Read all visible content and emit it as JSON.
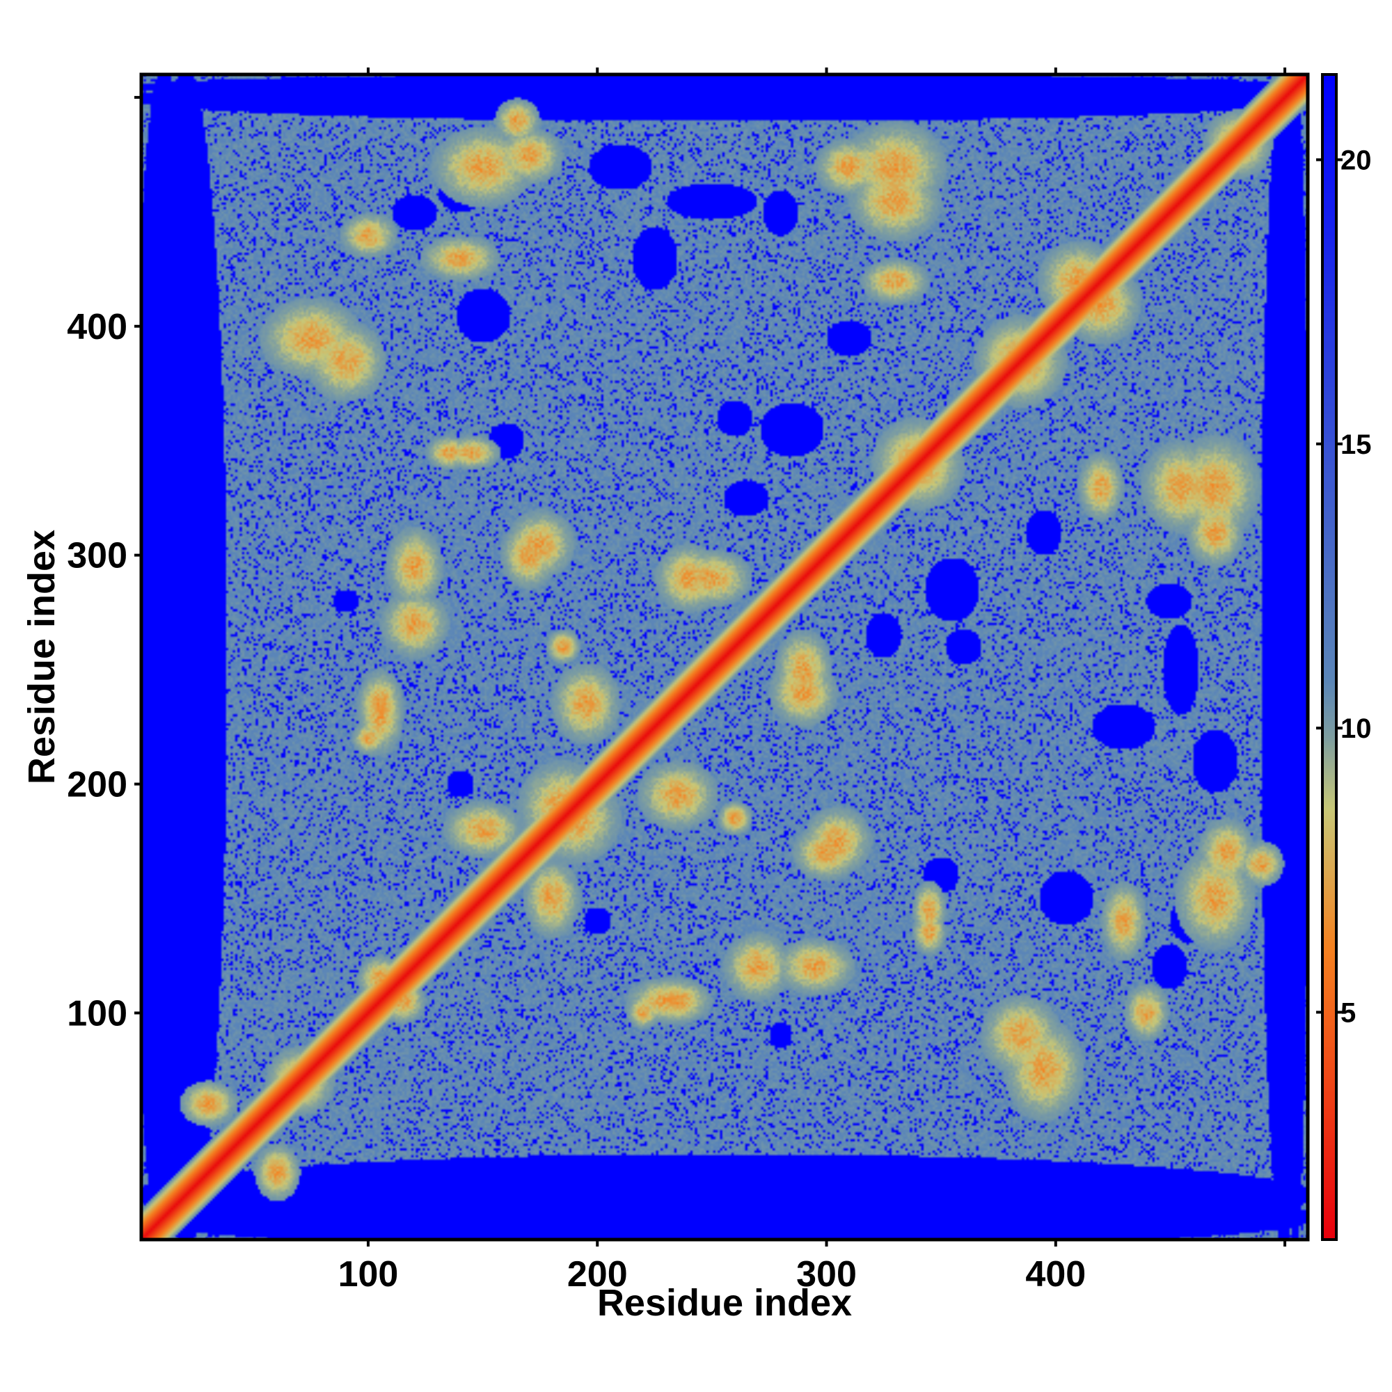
{
  "chart_data": {
    "type": "heatmap",
    "title": "",
    "xlabel": "Residue index",
    "ylabel": "Residue index",
    "n_residues": 510,
    "xlim": [
      1,
      510
    ],
    "ylim": [
      1,
      510
    ],
    "x_ticks": [
      100,
      200,
      300,
      400
    ],
    "y_ticks": [
      100,
      200,
      300,
      400
    ],
    "colorbar": {
      "range": [
        1,
        21.5
      ],
      "ticks": [
        5,
        10,
        15,
        20
      ],
      "colors": [
        "#e8000b",
        "#f58220",
        "#c8c878",
        "#7f9fa0",
        "#5b86b8",
        "#0000ff"
      ],
      "stops": [
        0,
        0.25,
        0.37,
        0.43,
        0.48,
        1
      ]
    },
    "background_color": "#0000ff",
    "mid_color": "#5b86b8",
    "diagonal_color": "#e8000b",
    "contact_clusters": [
      {
        "x": 70,
        "y": 70,
        "sx": 12,
        "sy": 12
      },
      {
        "x": 30,
        "y": 60,
        "sx": 10,
        "sy": 8
      },
      {
        "x": 60,
        "y": 30,
        "sx": 8,
        "sy": 10
      },
      {
        "x": 75,
        "y": 395,
        "sx": 18,
        "sy": 14
      },
      {
        "x": 170,
        "y": 475,
        "sx": 12,
        "sy": 10
      },
      {
        "x": 140,
        "y": 430,
        "sx": 14,
        "sy": 8
      },
      {
        "x": 120,
        "y": 295,
        "sx": 10,
        "sy": 14
      },
      {
        "x": 175,
        "y": 305,
        "sx": 12,
        "sy": 12
      },
      {
        "x": 185,
        "y": 260,
        "sx": 6,
        "sy": 6
      },
      {
        "x": 185,
        "y": 190,
        "sx": 16,
        "sy": 16
      },
      {
        "x": 150,
        "y": 180,
        "sx": 14,
        "sy": 10
      },
      {
        "x": 105,
        "y": 230,
        "sx": 8,
        "sy": 14
      },
      {
        "x": 235,
        "y": 195,
        "sx": 14,
        "sy": 12
      },
      {
        "x": 260,
        "y": 185,
        "sx": 6,
        "sy": 6
      },
      {
        "x": 240,
        "y": 290,
        "sx": 12,
        "sy": 12
      },
      {
        "x": 290,
        "y": 250,
        "sx": 10,
        "sy": 14
      },
      {
        "x": 300,
        "y": 170,
        "sx": 12,
        "sy": 10
      },
      {
        "x": 270,
        "y": 120,
        "sx": 12,
        "sy": 12
      },
      {
        "x": 235,
        "y": 105,
        "sx": 12,
        "sy": 8
      },
      {
        "x": 330,
        "y": 455,
        "sx": 16,
        "sy": 14
      },
      {
        "x": 310,
        "y": 470,
        "sx": 12,
        "sy": 10
      },
      {
        "x": 385,
        "y": 385,
        "sx": 16,
        "sy": 16
      },
      {
        "x": 340,
        "y": 340,
        "sx": 16,
        "sy": 16
      },
      {
        "x": 420,
        "y": 410,
        "sx": 14,
        "sy": 14
      },
      {
        "x": 480,
        "y": 480,
        "sx": 12,
        "sy": 12
      },
      {
        "x": 470,
        "y": 330,
        "sx": 16,
        "sy": 18
      },
      {
        "x": 420,
        "y": 330,
        "sx": 8,
        "sy": 12
      },
      {
        "x": 385,
        "y": 90,
        "sx": 14,
        "sy": 14
      },
      {
        "x": 440,
        "y": 100,
        "sx": 8,
        "sy": 10
      },
      {
        "x": 470,
        "y": 150,
        "sx": 14,
        "sy": 18
      },
      {
        "x": 490,
        "y": 165,
        "sx": 8,
        "sy": 8
      },
      {
        "x": 345,
        "y": 145,
        "sx": 6,
        "sy": 10
      },
      {
        "x": 115,
        "y": 105,
        "sx": 8,
        "sy": 8
      },
      {
        "x": 135,
        "y": 345,
        "sx": 8,
        "sy": 6
      },
      {
        "x": 220,
        "y": 100,
        "sx": 6,
        "sy": 6
      }
    ],
    "empty_regions": [
      {
        "x": 20,
        "y": 255,
        "sx": 18,
        "sy": 260
      },
      {
        "x": 255,
        "y": 10,
        "sx": 260,
        "sy": 14
      },
      {
        "x": 500,
        "y": 255,
        "sx": 10,
        "sy": 260
      },
      {
        "x": 255,
        "y": 505,
        "sx": 260,
        "sy": 6
      },
      {
        "x": 160,
        "y": 350,
        "sx": 8,
        "sy": 8
      },
      {
        "x": 285,
        "y": 355,
        "sx": 14,
        "sy": 12
      },
      {
        "x": 310,
        "y": 395,
        "sx": 10,
        "sy": 8
      },
      {
        "x": 430,
        "y": 225,
        "sx": 14,
        "sy": 10
      },
      {
        "x": 450,
        "y": 280,
        "sx": 10,
        "sy": 8
      },
      {
        "x": 250,
        "y": 455,
        "sx": 20,
        "sy": 8
      },
      {
        "x": 140,
        "y": 460,
        "sx": 10,
        "sy": 10
      },
      {
        "x": 270,
        "y": 120,
        "sx": 5,
        "sy": 6
      },
      {
        "x": 405,
        "y": 150,
        "sx": 12,
        "sy": 12
      },
      {
        "x": 360,
        "y": 260,
        "sx": 8,
        "sy": 8
      },
      {
        "x": 265,
        "y": 325,
        "sx": 10,
        "sy": 8
      },
      {
        "x": 90,
        "y": 280,
        "sx": 6,
        "sy": 5
      },
      {
        "x": 210,
        "y": 470,
        "sx": 14,
        "sy": 10
      },
      {
        "x": 450,
        "y": 120,
        "sx": 8,
        "sy": 10
      },
      {
        "x": 200,
        "y": 140,
        "sx": 6,
        "sy": 6
      }
    ]
  }
}
